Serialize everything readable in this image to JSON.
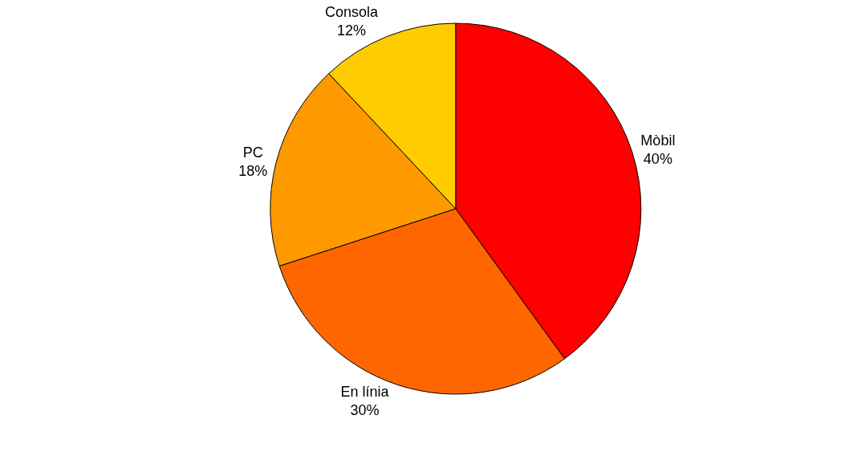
{
  "chart_data": {
    "type": "pie",
    "categories": [
      "Mòbil",
      "En línia",
      "PC",
      "Consola"
    ],
    "values": [
      40,
      30,
      18,
      12
    ],
    "colors": [
      "#ff0000",
      "#ff6600",
      "#ff9900",
      "#ffcc00"
    ],
    "value_labels": [
      "40%",
      "30%",
      "18%",
      "12%"
    ],
    "legend": false
  }
}
